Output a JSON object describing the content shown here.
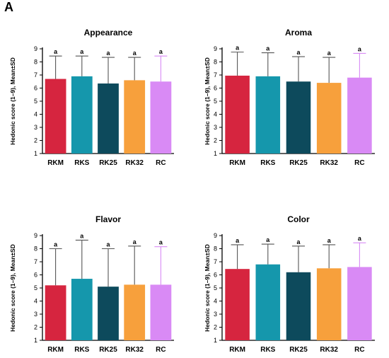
{
  "figure": {
    "panel_label": "A"
  },
  "chart_data": [
    {
      "type": "bar",
      "title": "Appearance",
      "ylabel": "Hedonic score (1–9), Mean±SD",
      "xlabel": "",
      "categories": [
        "RKM",
        "RKS",
        "RK25",
        "RK32",
        "RC"
      ],
      "values": [
        6.7,
        6.9,
        6.35,
        6.6,
        6.5
      ],
      "errors": [
        1.75,
        1.55,
        2.0,
        1.75,
        1.95
      ],
      "labels": [
        "a",
        "a",
        "a",
        "a",
        "a"
      ],
      "ylim": [
        1,
        9
      ],
      "yticks": [
        1,
        2,
        3,
        4,
        5,
        6,
        7,
        8,
        9
      ],
      "grid": false,
      "colors": [
        "#d6253f",
        "#1597ac",
        "#0d4a5c",
        "#f7a03c",
        "#d98af5"
      ]
    },
    {
      "type": "bar",
      "title": "Aroma",
      "ylabel": "Hedonic score (1–9), Mean±SD",
      "xlabel": "",
      "categories": [
        "RKM",
        "RKS",
        "RK25",
        "RK32",
        "RC"
      ],
      "values": [
        6.95,
        6.9,
        6.5,
        6.4,
        6.8
      ],
      "errors": [
        1.8,
        1.8,
        1.9,
        1.95,
        1.85
      ],
      "labels": [
        "a",
        "a",
        "a",
        "a",
        "a"
      ],
      "ylim": [
        1,
        9
      ],
      "yticks": [
        1,
        2,
        3,
        4,
        5,
        6,
        7,
        8,
        9
      ],
      "grid": false,
      "colors": [
        "#d6253f",
        "#1597ac",
        "#0d4a5c",
        "#f7a03c",
        "#d98af5"
      ]
    },
    {
      "type": "bar",
      "title": "Flavor",
      "ylabel": "Hedonic score (1–9), Mean±SD",
      "xlabel": "",
      "categories": [
        "RKM",
        "RKS",
        "RK25",
        "RK32",
        "RC"
      ],
      "values": [
        5.2,
        5.7,
        5.1,
        5.25,
        5.25
      ],
      "errors": [
        2.8,
        2.95,
        2.9,
        2.95,
        2.9
      ],
      "labels": [
        "a",
        "a",
        "a",
        "a",
        "a"
      ],
      "ylim": [
        1,
        9
      ],
      "yticks": [
        1,
        2,
        3,
        4,
        5,
        6,
        7,
        8,
        9
      ],
      "grid": false,
      "colors": [
        "#d6253f",
        "#1597ac",
        "#0d4a5c",
        "#f7a03c",
        "#d98af5"
      ]
    },
    {
      "type": "bar",
      "title": "Color",
      "ylabel": "Hedonic score (1–9), Mean±SD",
      "xlabel": "",
      "categories": [
        "RKM",
        "RKS",
        "RK25",
        "RK32",
        "RC"
      ],
      "values": [
        6.45,
        6.8,
        6.2,
        6.5,
        6.6
      ],
      "errors": [
        1.85,
        1.55,
        2.0,
        1.8,
        1.85
      ],
      "labels": [
        "a",
        "a",
        "a",
        "a",
        "a"
      ],
      "ylim": [
        1,
        9
      ],
      "yticks": [
        1,
        2,
        3,
        4,
        5,
        6,
        7,
        8,
        9
      ],
      "grid": false,
      "colors": [
        "#d6253f",
        "#1597ac",
        "#0d4a5c",
        "#f7a03c",
        "#d98af5"
      ]
    }
  ]
}
